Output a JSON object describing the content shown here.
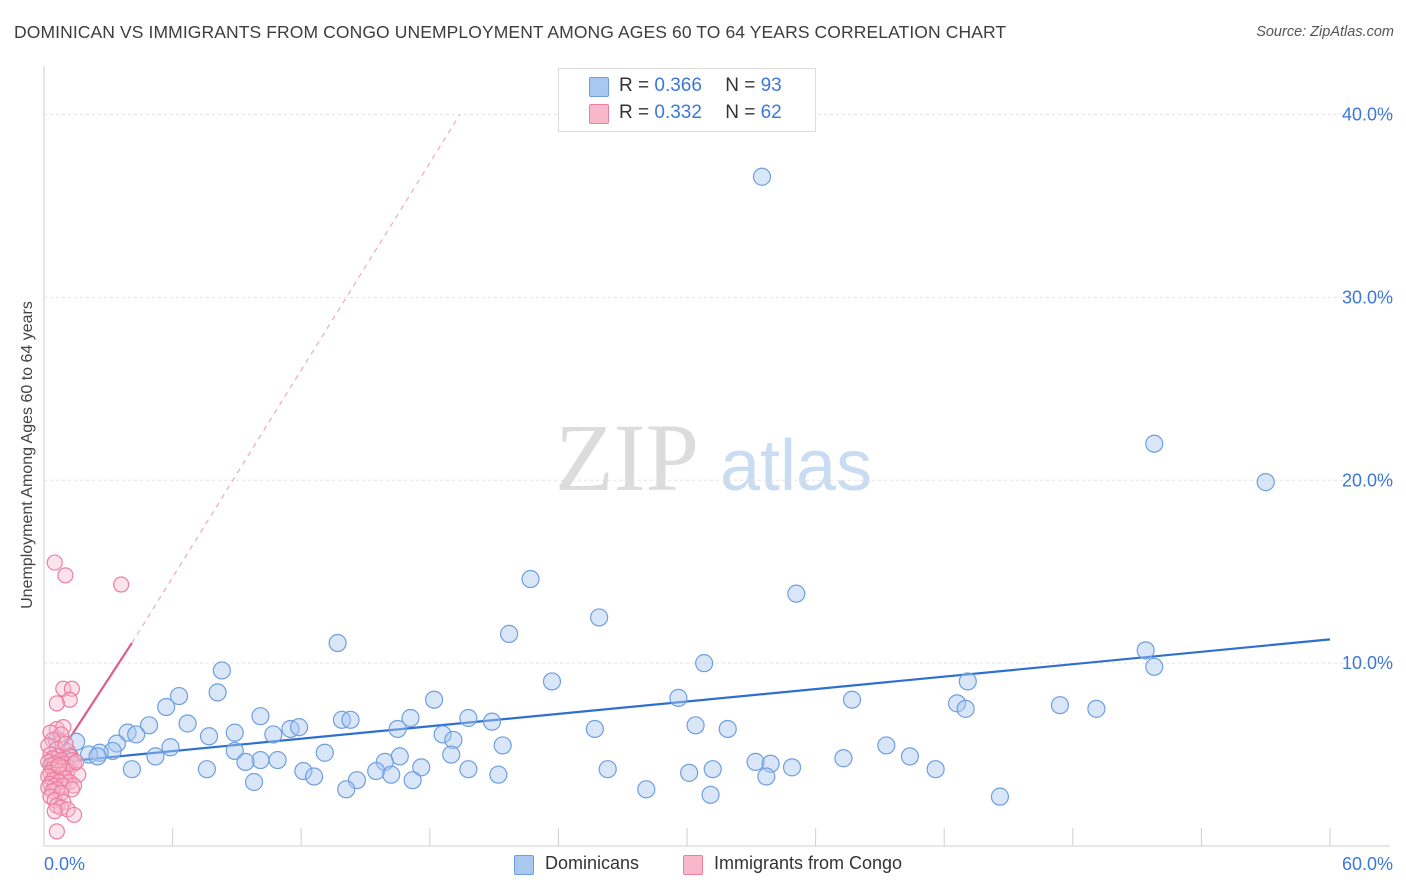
{
  "title": "DOMINICAN VS IMMIGRANTS FROM CONGO UNEMPLOYMENT AMONG AGES 60 TO 64 YEARS CORRELATION CHART",
  "source": "Source: ZipAtlas.com",
  "watermark": {
    "zip": "ZIP",
    "atlas": "atlas"
  },
  "legend": {
    "r_label": "R =",
    "n_label": "N =",
    "series": [
      {
        "r": "0.366",
        "n": "93",
        "color": "#a8c8f0",
        "border": "#6e9fe0"
      },
      {
        "r": "0.332",
        "n": "62",
        "color": "#f8b8cc",
        "border": "#ec7fa0"
      }
    ]
  },
  "bottom_legend": [
    "Dominicans",
    "Immigrants from Congo"
  ],
  "chart_data": {
    "type": "scatter",
    "title": "DOMINICAN VS IMMIGRANTS FROM CONGO UNEMPLOYMENT AMONG AGES 60 TO 64 YEARS CORRELATION CHART",
    "ylabel": "Unemployment Among Ages 60 to 64 years",
    "xlabel": "",
    "xlim": [
      0,
      60
    ],
    "ylim": [
      0,
      42
    ],
    "x_tick_labels": [
      "0.0%",
      "60.0%"
    ],
    "y_ticks": [
      10,
      20,
      30,
      40
    ],
    "y_tick_labels": [
      "10.0%",
      "20.0%",
      "30.0%",
      "40.0%"
    ],
    "series": [
      {
        "name": "Dominicans",
        "color": "#a8c8f0",
        "stroke": "#6e9fe0",
        "trend": {
          "x": [
            0.8,
            60
          ],
          "y": [
            4.6,
            11.3
          ],
          "color": "#2f6fcf"
        },
        "points": [
          [
            33.5,
            36.6
          ],
          [
            51.8,
            22.0
          ],
          [
            57.0,
            19.9
          ],
          [
            22.7,
            14.6
          ],
          [
            35.1,
            13.8
          ],
          [
            25.9,
            12.5
          ],
          [
            21.7,
            11.6
          ],
          [
            13.7,
            11.1
          ],
          [
            51.4,
            10.7
          ],
          [
            30.8,
            10.0
          ],
          [
            51.8,
            9.8
          ],
          [
            8.3,
            9.6
          ],
          [
            23.7,
            9.0
          ],
          [
            43.1,
            9.0
          ],
          [
            6.3,
            8.2
          ],
          [
            8.1,
            8.4
          ],
          [
            18.2,
            8.0
          ],
          [
            29.6,
            8.1
          ],
          [
            37.7,
            8.0
          ],
          [
            42.6,
            7.8
          ],
          [
            43.0,
            7.5
          ],
          [
            47.4,
            7.7
          ],
          [
            49.1,
            7.5
          ],
          [
            5.7,
            7.6
          ],
          [
            10.1,
            7.1
          ],
          [
            17.1,
            7.0
          ],
          [
            19.8,
            7.0
          ],
          [
            13.9,
            6.9
          ],
          [
            14.3,
            6.9
          ],
          [
            20.9,
            6.8
          ],
          [
            6.7,
            6.7
          ],
          [
            4.9,
            6.6
          ],
          [
            11.5,
            6.4
          ],
          [
            11.9,
            6.5
          ],
          [
            16.5,
            6.4
          ],
          [
            30.4,
            6.6
          ],
          [
            31.9,
            6.4
          ],
          [
            25.7,
            6.4
          ],
          [
            3.9,
            6.2
          ],
          [
            4.3,
            6.1
          ],
          [
            8.9,
            6.2
          ],
          [
            7.7,
            6.0
          ],
          [
            10.7,
            6.1
          ],
          [
            18.6,
            6.1
          ],
          [
            19.1,
            5.8
          ],
          [
            0.6,
            5.8
          ],
          [
            1.5,
            5.7
          ],
          [
            3.4,
            5.6
          ],
          [
            5.9,
            5.4
          ],
          [
            21.4,
            5.5
          ],
          [
            39.3,
            5.5
          ],
          [
            3.2,
            5.2
          ],
          [
            8.9,
            5.2
          ],
          [
            2.6,
            5.1
          ],
          [
            2.1,
            5.0
          ],
          [
            2.5,
            4.9
          ],
          [
            1.2,
            4.9
          ],
          [
            13.1,
            5.1
          ],
          [
            16.6,
            4.9
          ],
          [
            19.0,
            5.0
          ],
          [
            5.2,
            4.9
          ],
          [
            40.4,
            4.9
          ],
          [
            10.1,
            4.7
          ],
          [
            10.9,
            4.7
          ],
          [
            9.4,
            4.6
          ],
          [
            0.4,
            4.6
          ],
          [
            1.1,
            4.7
          ],
          [
            15.9,
            4.6
          ],
          [
            33.2,
            4.6
          ],
          [
            33.9,
            4.5
          ],
          [
            4.1,
            4.2
          ],
          [
            7.6,
            4.2
          ],
          [
            12.1,
            4.1
          ],
          [
            17.6,
            4.3
          ],
          [
            19.8,
            4.2
          ],
          [
            15.5,
            4.1
          ],
          [
            26.3,
            4.2
          ],
          [
            31.2,
            4.2
          ],
          [
            41.6,
            4.2
          ],
          [
            16.2,
            3.9
          ],
          [
            21.2,
            3.9
          ],
          [
            12.6,
            3.8
          ],
          [
            14.6,
            3.6
          ],
          [
            17.2,
            3.6
          ],
          [
            30.1,
            4.0
          ],
          [
            33.7,
            3.8
          ],
          [
            9.8,
            3.5
          ],
          [
            14.1,
            3.1
          ],
          [
            28.1,
            3.1
          ],
          [
            31.1,
            2.8
          ],
          [
            44.6,
            2.7
          ],
          [
            37.3,
            4.8
          ],
          [
            34.9,
            4.3
          ]
        ]
      },
      {
        "name": "Immigrants from Congo",
        "color": "#f8b8cc",
        "stroke": "#ec7fa0",
        "trend": {
          "x": [
            0.2,
            4.1
          ],
          "y": [
            4.1,
            11.1
          ],
          "color": "#e05c8a"
        },
        "trend_extension": {
          "x": [
            4.1,
            19.4
          ],
          "y": [
            11.1,
            40.0
          ]
        },
        "points": [
          [
            0.5,
            15.5
          ],
          [
            1.0,
            14.8
          ],
          [
            3.6,
            14.3
          ],
          [
            0.9,
            8.6
          ],
          [
            1.3,
            8.6
          ],
          [
            1.2,
            8.0
          ],
          [
            0.6,
            7.8
          ],
          [
            0.6,
            6.4
          ],
          [
            0.9,
            6.5
          ],
          [
            0.3,
            6.2
          ],
          [
            0.8,
            6.1
          ],
          [
            0.4,
            5.8
          ],
          [
            0.2,
            5.5
          ],
          [
            0.6,
            5.3
          ],
          [
            1.1,
            5.2
          ],
          [
            0.3,
            5.0
          ],
          [
            0.7,
            4.9
          ],
          [
            1.2,
            4.9
          ],
          [
            0.4,
            4.8
          ],
          [
            0.8,
            4.7
          ],
          [
            1.3,
            4.7
          ],
          [
            0.2,
            4.6
          ],
          [
            0.5,
            4.5
          ],
          [
            1.0,
            4.5
          ],
          [
            1.4,
            4.5
          ],
          [
            0.3,
            4.4
          ],
          [
            0.6,
            4.3
          ],
          [
            0.9,
            4.3
          ],
          [
            0.4,
            4.2
          ],
          [
            0.7,
            4.1
          ],
          [
            1.1,
            4.1
          ],
          [
            0.3,
            4.0
          ],
          [
            0.5,
            3.9
          ],
          [
            0.8,
            3.9
          ],
          [
            1.6,
            3.9
          ],
          [
            0.2,
            3.8
          ],
          [
            0.6,
            3.7
          ],
          [
            1.0,
            3.7
          ],
          [
            0.4,
            3.6
          ],
          [
            0.7,
            3.5
          ],
          [
            1.2,
            3.5
          ],
          [
            0.3,
            3.4
          ],
          [
            0.5,
            3.3
          ],
          [
            0.9,
            3.3
          ],
          [
            1.4,
            3.3
          ],
          [
            0.2,
            3.2
          ],
          [
            0.6,
            3.1
          ],
          [
            1.3,
            3.1
          ],
          [
            0.4,
            3.0
          ],
          [
            0.8,
            2.9
          ],
          [
            0.3,
            2.7
          ],
          [
            0.5,
            2.5
          ],
          [
            0.9,
            2.4
          ],
          [
            0.6,
            2.2
          ],
          [
            0.8,
            2.1
          ],
          [
            1.1,
            2.0
          ],
          [
            0.5,
            1.9
          ],
          [
            1.4,
            1.7
          ],
          [
            0.6,
            0.8
          ],
          [
            1.5,
            4.6
          ],
          [
            1.0,
            5.6
          ],
          [
            0.7,
            4.4
          ]
        ]
      }
    ]
  }
}
